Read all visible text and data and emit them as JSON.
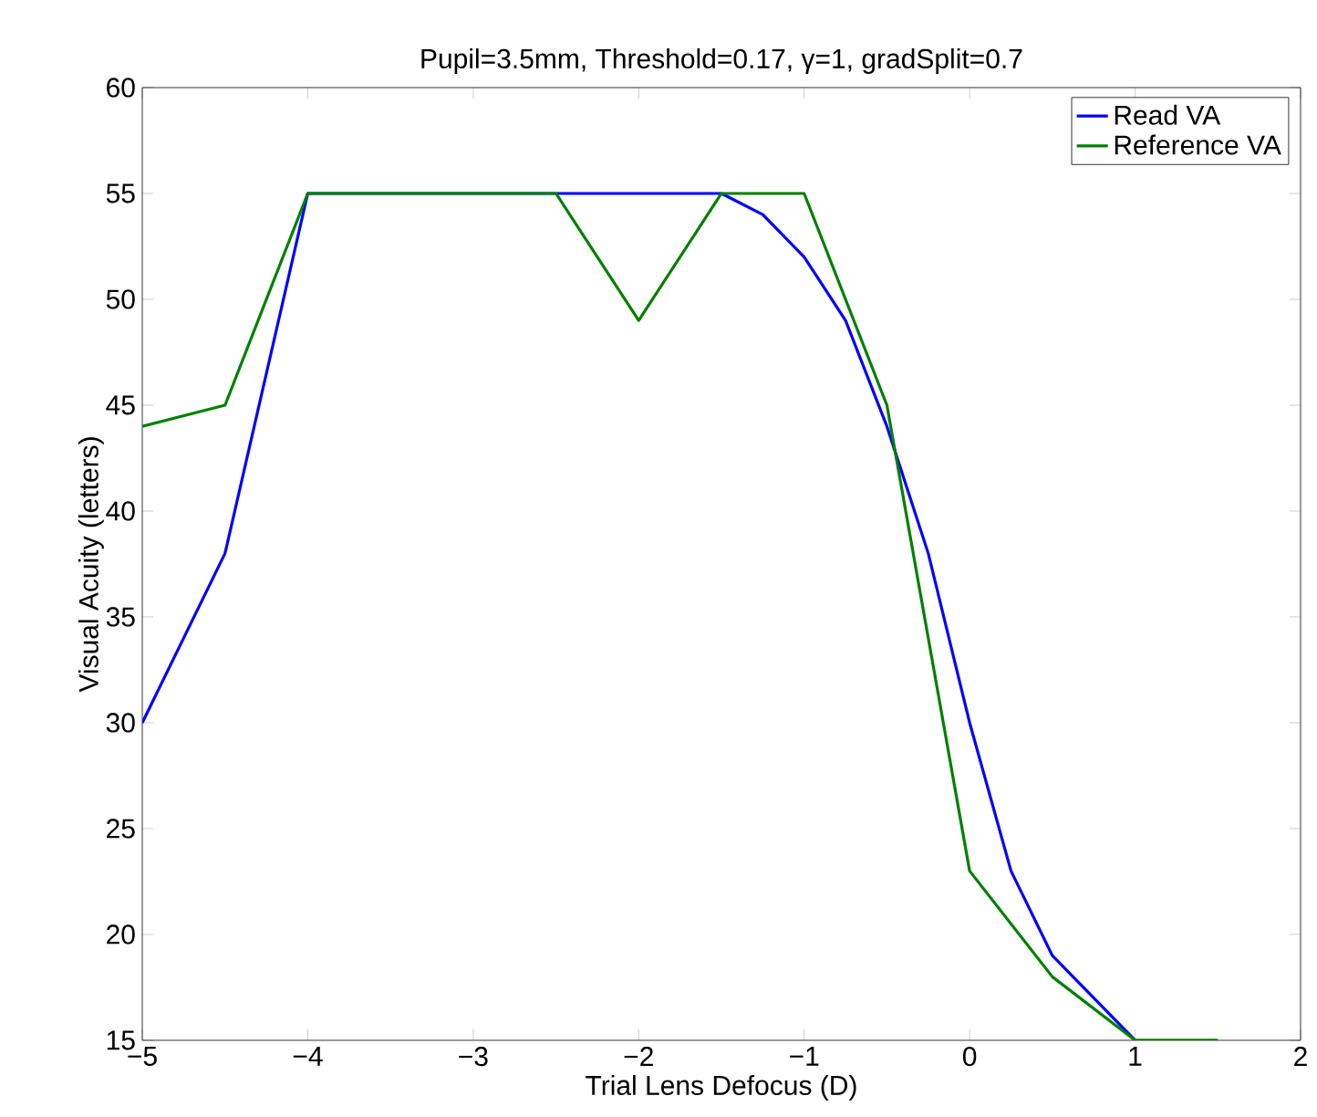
{
  "chart_data": {
    "type": "line",
    "title": "Pupil=3.5mm, Threshold=0.17, γ=1, gradSplit=0.7",
    "xlabel": "Trial Lens Defocus (D)",
    "ylabel": "Visual Acuity (letters)",
    "xlim": [
      -5,
      2
    ],
    "ylim": [
      15,
      60
    ],
    "xticks": [
      {
        "value": -5,
        "label": "−5"
      },
      {
        "value": -4,
        "label": "−4"
      },
      {
        "value": -3,
        "label": "−3"
      },
      {
        "value": -2,
        "label": "−2"
      },
      {
        "value": -1,
        "label": "−1"
      },
      0,
      1,
      2
    ],
    "yticks": [
      15,
      20,
      25,
      30,
      35,
      40,
      45,
      50,
      55,
      60
    ],
    "grid": false,
    "legend": "top right",
    "marker": "none",
    "line_style": "solid",
    "series": [
      {
        "name": "Read VA",
        "color": "#0000ff",
        "x": [
          -5,
          -4.5,
          -4,
          -3.5,
          -3,
          -2.5,
          -2,
          -1.5,
          -1.25,
          -1,
          -0.75,
          -0.5,
          -0.25,
          0,
          0.25,
          0.5,
          1
        ],
        "values": [
          30,
          38,
          55,
          null,
          null,
          55,
          55,
          55,
          54,
          52,
          49,
          44,
          38,
          30,
          23,
          19,
          15
        ]
      },
      {
        "name": "Reference VA",
        "color": "#008000",
        "x": [
          -5,
          -4.5,
          -4,
          -3.5,
          -3,
          -2.5,
          -2,
          -1.5,
          -1,
          -0.5,
          0,
          0.5,
          1,
          1.5
        ],
        "values": [
          44,
          45,
          55,
          55,
          55,
          55,
          49,
          55,
          55,
          45,
          23,
          18,
          15,
          15
        ]
      }
    ]
  }
}
